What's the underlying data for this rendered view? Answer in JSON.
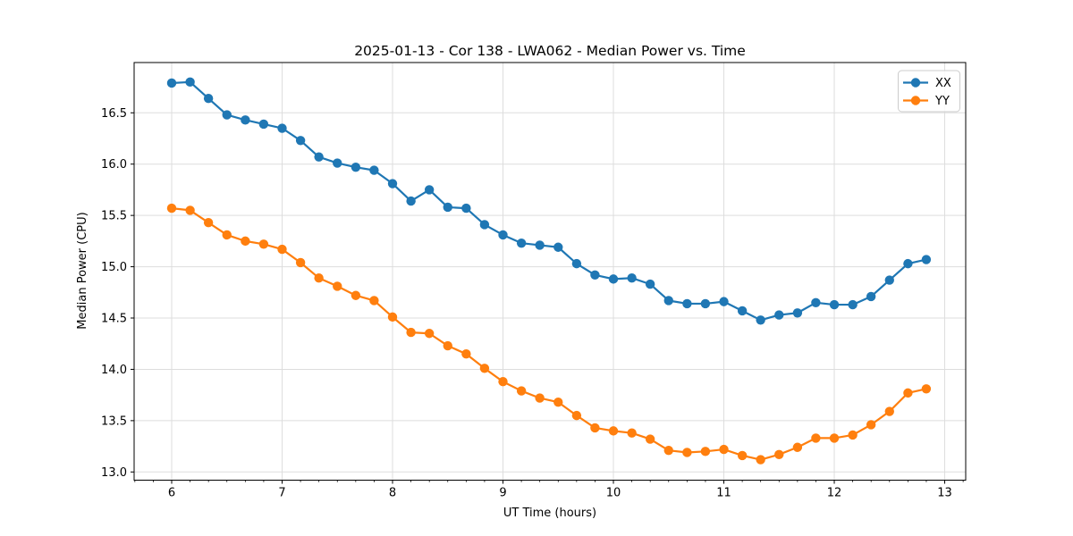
{
  "window": {
    "background_color": "#ffffff"
  },
  "chart_data": {
    "type": "line",
    "title": "2025-01-13 - Cor 138 - LWA062 - Median Power vs. Time",
    "xlabel": "UT Time (hours)",
    "ylabel": "Median Power (CPU)",
    "xlim": [
      5.66,
      13.19
    ],
    "ylim": [
      12.92,
      16.99
    ],
    "xticks": [
      6,
      7,
      8,
      9,
      10,
      11,
      12,
      13
    ],
    "xtick_labels": [
      "6",
      "7",
      "8",
      "9",
      "10",
      "11",
      "12",
      "13"
    ],
    "yticks": [
      13.0,
      13.5,
      14.0,
      14.5,
      15.0,
      15.5,
      16.0,
      16.5
    ],
    "ytick_labels": [
      "13.0",
      "13.5",
      "14.0",
      "14.5",
      "15.0",
      "15.5",
      "16.0",
      "16.5"
    ],
    "minor_xtick_step_hours": 0.166667,
    "grid": true,
    "grid_color": "#dddddd",
    "spine_color": "#000000",
    "legend_position": "upper right",
    "marker": "circle",
    "x": [
      6.0,
      6.167,
      6.333,
      6.5,
      6.667,
      6.833,
      7.0,
      7.167,
      7.333,
      7.5,
      7.667,
      7.833,
      8.0,
      8.167,
      8.333,
      8.5,
      8.667,
      8.833,
      9.0,
      9.167,
      9.333,
      9.5,
      9.667,
      9.833,
      10.0,
      10.167,
      10.333,
      10.5,
      10.667,
      10.833,
      11.0,
      11.167,
      11.333,
      11.5,
      11.667,
      11.833,
      12.0,
      12.167,
      12.333,
      12.5,
      12.667,
      12.833
    ],
    "series": [
      {
        "name": "XX",
        "color": "#1f77b4",
        "values": [
          16.79,
          16.8,
          16.64,
          16.48,
          16.43,
          16.39,
          16.35,
          16.23,
          16.07,
          16.01,
          15.97,
          15.94,
          15.81,
          15.64,
          15.75,
          15.58,
          15.57,
          15.41,
          15.31,
          15.23,
          15.21,
          15.19,
          15.03,
          14.92,
          14.88,
          14.89,
          14.83,
          14.67,
          14.64,
          14.64,
          14.66,
          14.57,
          14.48,
          14.53,
          14.55,
          14.65,
          14.63,
          14.63,
          14.71,
          14.87,
          15.03,
          15.07
        ]
      },
      {
        "name": "YY",
        "color": "#ff7f0e",
        "values": [
          15.57,
          15.55,
          15.43,
          15.31,
          15.25,
          15.22,
          15.17,
          15.04,
          14.89,
          14.81,
          14.72,
          14.67,
          14.51,
          14.36,
          14.35,
          14.23,
          14.15,
          14.01,
          13.88,
          13.79,
          13.72,
          13.68,
          13.55,
          13.43,
          13.4,
          13.38,
          13.32,
          13.21,
          13.19,
          13.2,
          13.22,
          13.16,
          13.12,
          13.17,
          13.24,
          13.33,
          13.33,
          13.36,
          13.46,
          13.59,
          13.77,
          13.81
        ]
      }
    ]
  }
}
